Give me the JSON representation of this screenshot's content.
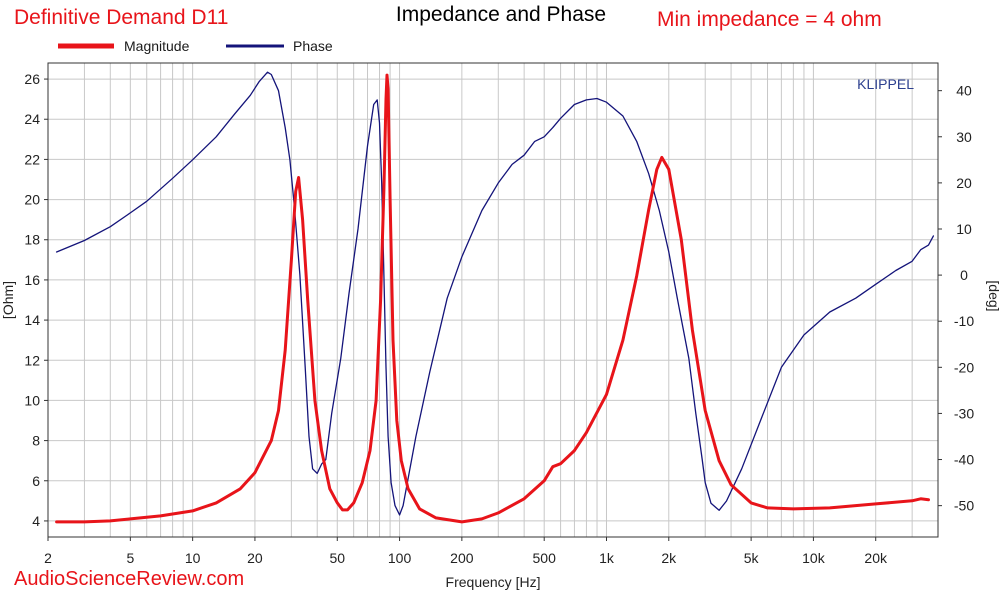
{
  "header": {
    "product": "Definitive Demand D11",
    "title": "Impedance and Phase",
    "min_impedance": "Min impedance = 4 ohm"
  },
  "watermark": "AudioScienceReview.com",
  "brand": "KLIPPEL",
  "colors": {
    "magnitude": "#e8141a",
    "phase": "#14147a",
    "grid": "#c8c8c8",
    "accent": "#e8141a"
  },
  "chart_data": {
    "type": "line",
    "xlabel": "Frequency [Hz]",
    "ylabel": "[Ohm]",
    "y2label": "[deg]",
    "xscale": "log",
    "xlim": [
      2,
      40000
    ],
    "ylim": [
      3.2,
      26.8
    ],
    "y2lim": [
      -56.8,
      46.0
    ],
    "grid": true,
    "legend_position": "top-left",
    "x_ticks": [
      {
        "value": 2,
        "label": "2"
      },
      {
        "value": 5,
        "label": "5"
      },
      {
        "value": 10,
        "label": "10"
      },
      {
        "value": 20,
        "label": "20"
      },
      {
        "value": 50,
        "label": "50"
      },
      {
        "value": 100,
        "label": "100"
      },
      {
        "value": 200,
        "label": "200"
      },
      {
        "value": 500,
        "label": "500"
      },
      {
        "value": 1000,
        "label": "1k"
      },
      {
        "value": 2000,
        "label": "2k"
      },
      {
        "value": 5000,
        "label": "5k"
      },
      {
        "value": 10000,
        "label": "10k"
      },
      {
        "value": 20000,
        "label": "20k"
      }
    ],
    "y_ticks": [
      4,
      6,
      8,
      10,
      12,
      14,
      16,
      18,
      20,
      22,
      24,
      26
    ],
    "y2_ticks": [
      -50,
      -40,
      -30,
      -20,
      -10,
      0,
      10,
      20,
      30,
      40
    ],
    "series": [
      {
        "name": "Magnitude",
        "axis": "left",
        "color": "#e8141a",
        "points": [
          [
            2.2,
            3.95
          ],
          [
            3,
            3.95
          ],
          [
            4,
            4.0
          ],
          [
            5,
            4.1
          ],
          [
            7,
            4.25
          ],
          [
            10,
            4.5
          ],
          [
            13,
            4.9
          ],
          [
            17,
            5.6
          ],
          [
            20,
            6.4
          ],
          [
            24,
            8.0
          ],
          [
            26,
            9.5
          ],
          [
            28,
            12.5
          ],
          [
            30,
            17.0
          ],
          [
            31.5,
            20.4
          ],
          [
            32.5,
            21.1
          ],
          [
            34,
            19.0
          ],
          [
            36,
            15.0
          ],
          [
            39,
            10.0
          ],
          [
            42,
            7.5
          ],
          [
            46,
            5.6
          ],
          [
            50,
            4.9
          ],
          [
            53,
            4.55
          ],
          [
            56,
            4.55
          ],
          [
            60,
            4.9
          ],
          [
            66,
            5.9
          ],
          [
            72,
            7.5
          ],
          [
            77,
            10.0
          ],
          [
            81,
            15.0
          ],
          [
            84,
            20.5
          ],
          [
            86,
            25.0
          ],
          [
            87,
            26.2
          ],
          [
            88,
            25.5
          ],
          [
            90,
            20.0
          ],
          [
            93,
            13.0
          ],
          [
            97,
            9.0
          ],
          [
            102,
            7.0
          ],
          [
            110,
            5.6
          ],
          [
            125,
            4.6
          ],
          [
            150,
            4.15
          ],
          [
            200,
            3.95
          ],
          [
            250,
            4.1
          ],
          [
            300,
            4.4
          ],
          [
            400,
            5.1
          ],
          [
            500,
            6.0
          ],
          [
            550,
            6.7
          ],
          [
            600,
            6.85
          ],
          [
            700,
            7.5
          ],
          [
            800,
            8.4
          ],
          [
            1000,
            10.3
          ],
          [
            1200,
            13.0
          ],
          [
            1400,
            16.2
          ],
          [
            1600,
            19.5
          ],
          [
            1750,
            21.5
          ],
          [
            1850,
            22.1
          ],
          [
            2000,
            21.5
          ],
          [
            2300,
            18.0
          ],
          [
            2600,
            13.5
          ],
          [
            3000,
            9.5
          ],
          [
            3500,
            7.0
          ],
          [
            4000,
            5.8
          ],
          [
            5000,
            4.9
          ],
          [
            6000,
            4.65
          ],
          [
            8000,
            4.6
          ],
          [
            12000,
            4.65
          ],
          [
            20000,
            4.85
          ],
          [
            30000,
            5.0
          ],
          [
            33000,
            5.1
          ],
          [
            36000,
            5.05
          ]
        ]
      },
      {
        "name": "Phase",
        "axis": "right",
        "color": "#14147a",
        "points": [
          [
            2.2,
            5
          ],
          [
            3,
            7.5
          ],
          [
            4,
            10.5
          ],
          [
            5,
            13.5
          ],
          [
            6,
            16
          ],
          [
            8,
            21
          ],
          [
            10,
            25
          ],
          [
            13,
            30
          ],
          [
            16,
            35
          ],
          [
            19,
            39
          ],
          [
            21,
            42
          ],
          [
            23,
            44
          ],
          [
            24,
            43.5
          ],
          [
            26,
            40
          ],
          [
            28,
            32
          ],
          [
            29.5,
            25
          ],
          [
            31,
            15
          ],
          [
            33,
            0
          ],
          [
            35,
            -20
          ],
          [
            36.5,
            -35
          ],
          [
            38,
            -42
          ],
          [
            40,
            -43
          ],
          [
            42,
            -41
          ],
          [
            44,
            -40
          ],
          [
            47,
            -30
          ],
          [
            52,
            -18
          ],
          [
            57,
            -4
          ],
          [
            63,
            10
          ],
          [
            70,
            28
          ],
          [
            75,
            37
          ],
          [
            78,
            38
          ],
          [
            80,
            33
          ],
          [
            82,
            20
          ],
          [
            84,
            0
          ],
          [
            86,
            -20
          ],
          [
            88,
            -35
          ],
          [
            91,
            -45
          ],
          [
            95,
            -50
          ],
          [
            100,
            -52
          ],
          [
            104,
            -50
          ],
          [
            108,
            -46
          ],
          [
            120,
            -35
          ],
          [
            140,
            -21
          ],
          [
            170,
            -5
          ],
          [
            200,
            4
          ],
          [
            250,
            14
          ],
          [
            300,
            20
          ],
          [
            350,
            24
          ],
          [
            400,
            26
          ],
          [
            450,
            29
          ],
          [
            500,
            30
          ],
          [
            550,
            32
          ],
          [
            600,
            34
          ],
          [
            700,
            37
          ],
          [
            800,
            38
          ],
          [
            900,
            38.3
          ],
          [
            1000,
            37.5
          ],
          [
            1200,
            34.5
          ],
          [
            1400,
            29
          ],
          [
            1600,
            22
          ],
          [
            1800,
            14
          ],
          [
            2000,
            5
          ],
          [
            2200,
            -5
          ],
          [
            2500,
            -18
          ],
          [
            2700,
            -30
          ],
          [
            2900,
            -40
          ],
          [
            3000,
            -45
          ],
          [
            3200,
            -49.5
          ],
          [
            3500,
            -51
          ],
          [
            3800,
            -49
          ],
          [
            4500,
            -42
          ],
          [
            5500,
            -32
          ],
          [
            7000,
            -20
          ],
          [
            9000,
            -13
          ],
          [
            12000,
            -8
          ],
          [
            16000,
            -5
          ],
          [
            20000,
            -2
          ],
          [
            25000,
            1
          ],
          [
            30000,
            3
          ],
          [
            33000,
            5.5
          ],
          [
            36000,
            6.5
          ],
          [
            38000,
            8.5
          ]
        ]
      }
    ]
  }
}
